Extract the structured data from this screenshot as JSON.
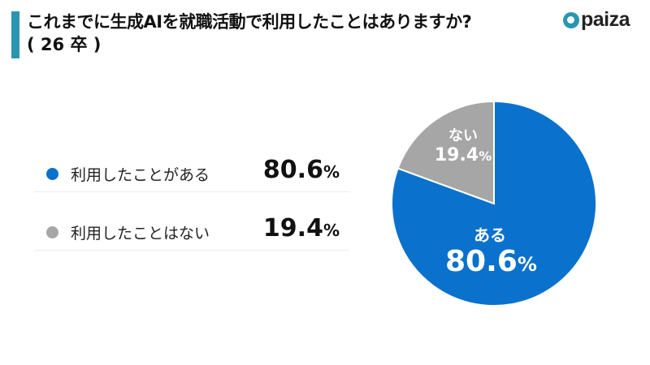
{
  "header": {
    "title": "これまでに生成AIを就職活動で利用したことはありますか?",
    "subtitle": "( 26 卒 )",
    "accent_color": "#2a95b0"
  },
  "logo": {
    "text": "paiza",
    "icon": "paiza-logo-icon"
  },
  "legend": [
    {
      "label": "利用したことがある",
      "value": "80.6",
      "unit": "%",
      "color": "#0a71cc"
    },
    {
      "label": "利用したことはない",
      "value": "19.4",
      "unit": "%",
      "color": "#a6a6a6"
    }
  ],
  "pie_labels": [
    {
      "name": "ある",
      "value": "80.6",
      "unit": "%"
    },
    {
      "name": "ない",
      "value": "19.4",
      "unit": "%"
    }
  ],
  "chart_data": {
    "type": "pie",
    "title": "これまでに生成AIを就職活動で利用したことはありますか?(26卒)",
    "categories": [
      "利用したことがある",
      "利用したことはない"
    ],
    "short_labels": [
      "ある",
      "ない"
    ],
    "values": [
      80.6,
      19.4
    ],
    "unit": "%",
    "colors": [
      "#0a71cc",
      "#a6a6a6"
    ],
    "start_angle": "12 o'clock, clockwise",
    "legend_position": "left"
  }
}
